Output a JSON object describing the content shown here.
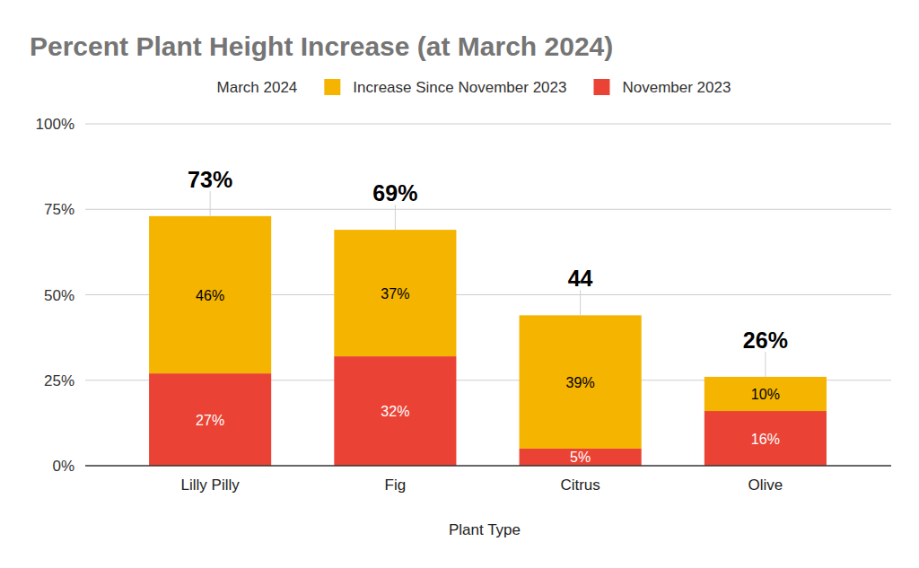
{
  "chart_data": {
    "type": "bar",
    "title": "Percent Plant Height Increase (at March 2024)",
    "x_label": "Plant Type",
    "categories": [
      "Lilly Pilly",
      "Fig",
      "Citrus",
      "Olive"
    ],
    "stacked": true,
    "data_labels": true,
    "grid": true,
    "legend": "top",
    "ylim": [
      0,
      100
    ],
    "yticks": [
      {
        "value": 0,
        "label": "0%"
      },
      {
        "value": 25,
        "label": "25%"
      },
      {
        "value": 50,
        "label": "50%"
      },
      {
        "value": 75,
        "label": "75%"
      },
      {
        "value": 100,
        "label": "100%"
      }
    ],
    "series": [
      {
        "name": "March 2024",
        "type": "line",
        "line_style": "none",
        "values": [
          73,
          69,
          44,
          26
        ],
        "value_labels": [
          "73%",
          "69%",
          "44",
          "26%"
        ]
      },
      {
        "name": "Increase Since November 2023",
        "color": "#f4b400",
        "values": [
          46,
          37,
          39,
          10
        ],
        "value_labels": [
          "46%",
          "37%",
          "39%",
          "10%"
        ]
      },
      {
        "name": "November 2023",
        "color": "#ea4335",
        "values": [
          27,
          32,
          5,
          16
        ],
        "value_labels": [
          "27%",
          "32%",
          "5%",
          "16%"
        ]
      }
    ]
  }
}
